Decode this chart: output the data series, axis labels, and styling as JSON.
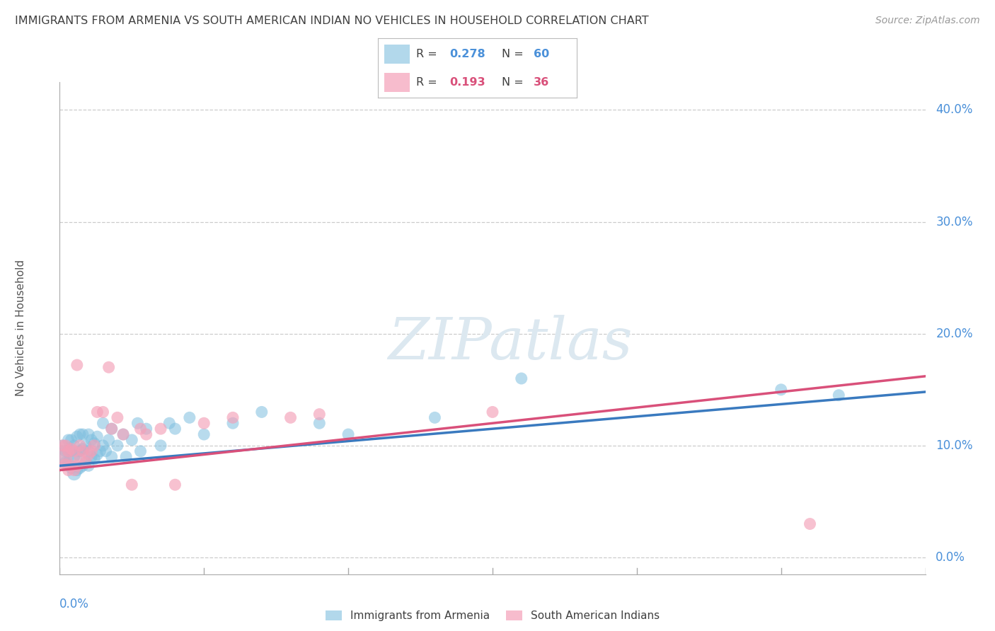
{
  "title": "IMMIGRANTS FROM ARMENIA VS SOUTH AMERICAN INDIAN NO VEHICLES IN HOUSEHOLD CORRELATION CHART",
  "source": "Source: ZipAtlas.com",
  "ylabel": "No Vehicles in Household",
  "ytick_vals": [
    0.0,
    0.1,
    0.2,
    0.3,
    0.4
  ],
  "ytick_labels": [
    "0.0%",
    "10.0%",
    "20.0%",
    "30.0%",
    "40.0%"
  ],
  "xlim": [
    0.0,
    0.3
  ],
  "ylim": [
    -0.015,
    0.425
  ],
  "legend1_R": "0.278",
  "legend1_N": "60",
  "legend2_R": "0.193",
  "legend2_N": "36",
  "color_blue": "#7fbfdf",
  "color_pink": "#f4a0b8",
  "color_blue_line": "#3a7abf",
  "color_pink_line": "#d9507a",
  "color_axis_label": "#4a90d9",
  "color_title": "#404040",
  "watermark_color": "#dce8f0",
  "blue_line_intercept": 0.082,
  "blue_line_slope": 0.22,
  "pink_line_intercept": 0.078,
  "pink_line_slope": 0.28,
  "blue_points_x": [
    0.001,
    0.001,
    0.002,
    0.002,
    0.003,
    0.003,
    0.003,
    0.004,
    0.004,
    0.004,
    0.005,
    0.005,
    0.005,
    0.006,
    0.006,
    0.006,
    0.007,
    0.007,
    0.007,
    0.008,
    0.008,
    0.008,
    0.009,
    0.009,
    0.01,
    0.01,
    0.01,
    0.011,
    0.011,
    0.012,
    0.012,
    0.013,
    0.013,
    0.014,
    0.015,
    0.015,
    0.016,
    0.017,
    0.018,
    0.018,
    0.02,
    0.022,
    0.023,
    0.025,
    0.027,
    0.028,
    0.03,
    0.035,
    0.038,
    0.04,
    0.045,
    0.05,
    0.06,
    0.07,
    0.09,
    0.1,
    0.13,
    0.16,
    0.25,
    0.27
  ],
  "blue_points_y": [
    0.09,
    0.1,
    0.085,
    0.095,
    0.085,
    0.095,
    0.105,
    0.08,
    0.095,
    0.105,
    0.075,
    0.09,
    0.1,
    0.078,
    0.092,
    0.108,
    0.08,
    0.095,
    0.11,
    0.082,
    0.097,
    0.11,
    0.085,
    0.1,
    0.082,
    0.095,
    0.11,
    0.09,
    0.105,
    0.088,
    0.102,
    0.092,
    0.108,
    0.095,
    0.1,
    0.12,
    0.095,
    0.105,
    0.09,
    0.115,
    0.1,
    0.11,
    0.09,
    0.105,
    0.12,
    0.095,
    0.115,
    0.1,
    0.12,
    0.115,
    0.125,
    0.11,
    0.12,
    0.13,
    0.12,
    0.11,
    0.125,
    0.16,
    0.15,
    0.145
  ],
  "blue_sizes": [
    200,
    150,
    150,
    150,
    150,
    150,
    150,
    150,
    150,
    150,
    200,
    150,
    150,
    150,
    150,
    150,
    150,
    150,
    150,
    150,
    150,
    150,
    150,
    150,
    150,
    150,
    150,
    150,
    150,
    150,
    150,
    150,
    150,
    150,
    150,
    150,
    150,
    150,
    150,
    150,
    150,
    150,
    150,
    150,
    150,
    150,
    150,
    150,
    150,
    150,
    150,
    150,
    150,
    150,
    150,
    150,
    150,
    150,
    150,
    150
  ],
  "pink_points_x": [
    0.001,
    0.001,
    0.002,
    0.002,
    0.003,
    0.003,
    0.004,
    0.004,
    0.005,
    0.005,
    0.006,
    0.006,
    0.007,
    0.007,
    0.008,
    0.009,
    0.01,
    0.011,
    0.012,
    0.013,
    0.015,
    0.017,
    0.018,
    0.02,
    0.022,
    0.025,
    0.028,
    0.03,
    0.035,
    0.04,
    0.05,
    0.06,
    0.08,
    0.09,
    0.15,
    0.26
  ],
  "pink_points_y": [
    0.088,
    0.1,
    0.083,
    0.1,
    0.078,
    0.095,
    0.082,
    0.097,
    0.078,
    0.095,
    0.082,
    0.172,
    0.088,
    0.1,
    0.095,
    0.085,
    0.092,
    0.095,
    0.1,
    0.13,
    0.13,
    0.17,
    0.115,
    0.125,
    0.11,
    0.065,
    0.115,
    0.11,
    0.115,
    0.065,
    0.12,
    0.125,
    0.125,
    0.128,
    0.13,
    0.03
  ],
  "pink_sizes": [
    400,
    150,
    150,
    150,
    150,
    150,
    150,
    150,
    150,
    150,
    150,
    150,
    150,
    150,
    150,
    150,
    150,
    150,
    150,
    150,
    150,
    150,
    150,
    150,
    150,
    150,
    150,
    150,
    150,
    150,
    150,
    150,
    150,
    150,
    150,
    150
  ]
}
